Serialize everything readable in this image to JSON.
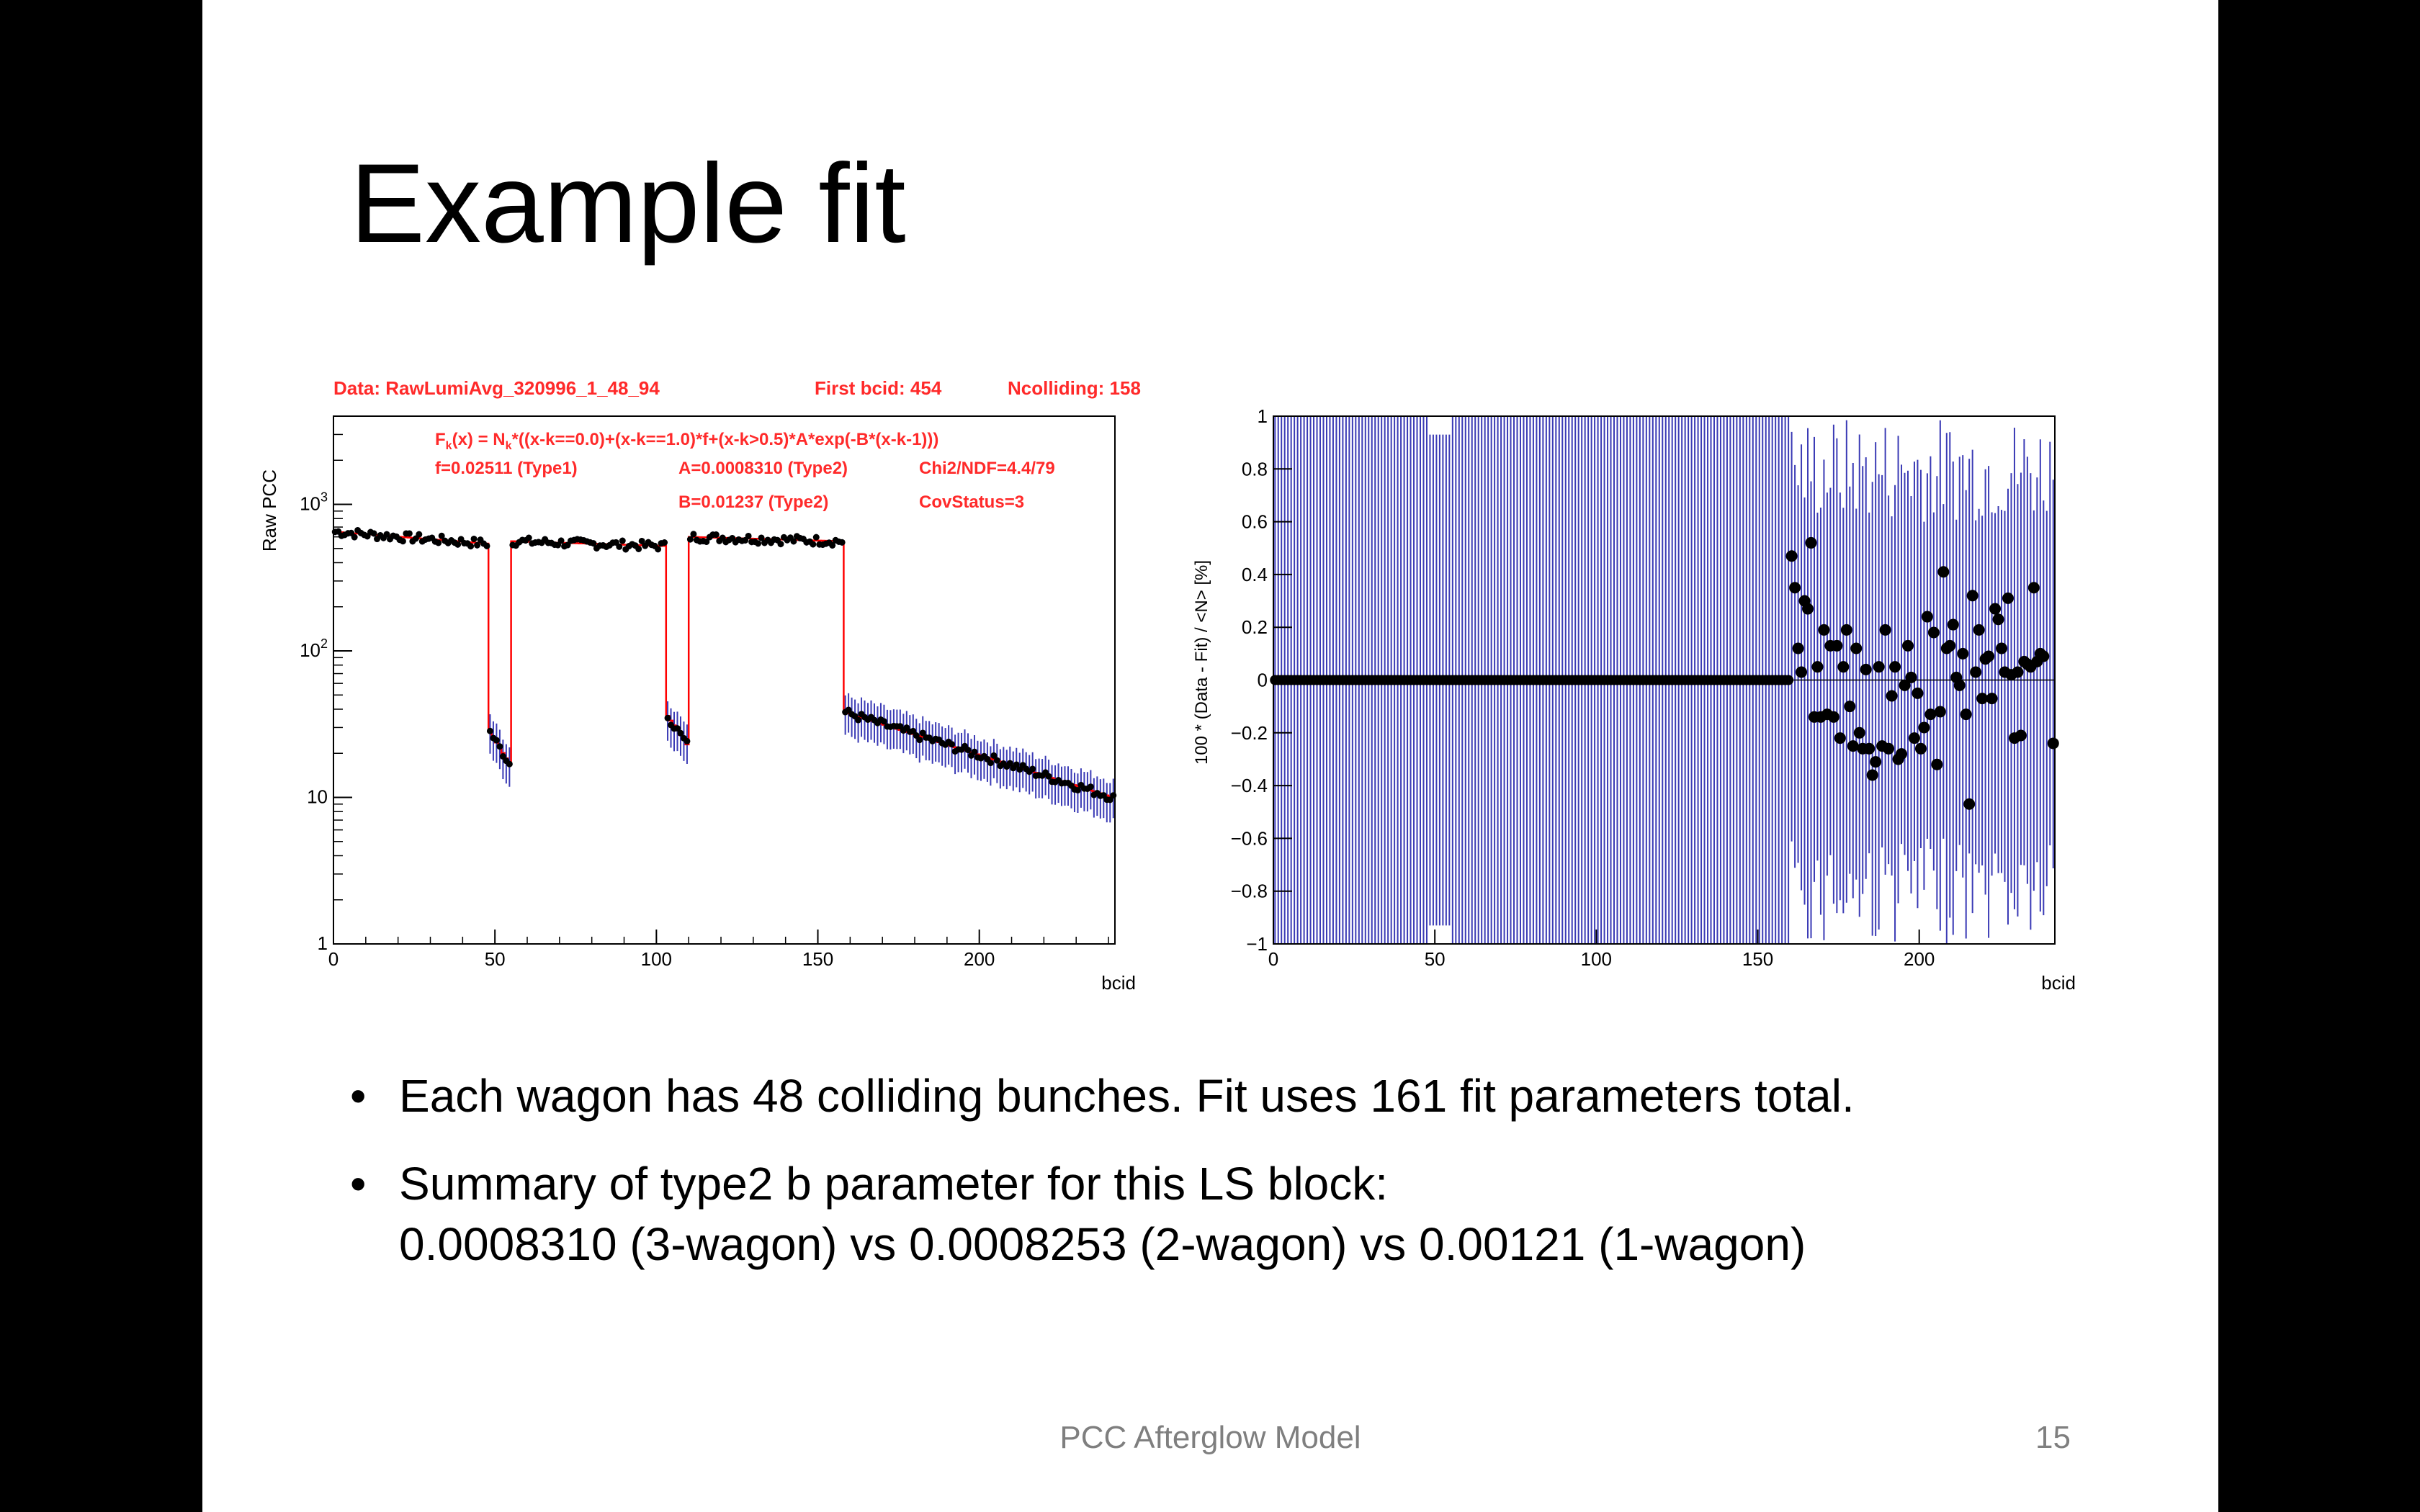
{
  "slide": {
    "title": "Example fit",
    "bullets": [
      {
        "line1": "Each wagon has 48 colliding bunches. Fit uses 161 fit parameters total."
      },
      {
        "line1": "Summary of type2 b parameter for this LS block:",
        "line2": "0.0008310 (3-wagon) vs 0.0008253 (2-wagon) vs  0.00121 (1-wagon)"
      }
    ],
    "footer": "PCC Afterglow Model",
    "page_number": "15"
  },
  "colors": {
    "data_red": "#ff2a2a",
    "fit_line": "#ff0000",
    "error_bar_blue": "#3a3ab5",
    "marker": "#000000"
  },
  "chart_data": [
    {
      "type": "scatter",
      "header": {
        "data": "Data: RawLumiAvg_320996_1_48_94",
        "first_bcid": "First bcid: 454",
        "ncolliding": "Ncolliding: 158"
      },
      "annotations": {
        "formula_pre": "F",
        "formula_sub_k": "k",
        "formula_mid": "(x) = N",
        "formula_post": "*((x-k==0.0)+(x-k==1.0)*f+(x-k>0.5)*A*exp(-B*(x-k-1)))",
        "f": "f=0.02511 (Type1)",
        "A": "A=0.0008310 (Type2)",
        "chi2": "Chi2/NDF=4.4/79",
        "B": "B=0.01237 (Type2)",
        "cov": "CovStatus=3"
      },
      "xlabel": "bcid",
      "ylabel": "Raw PCC",
      "xlim": [
        0,
        242
      ],
      "ylim": [
        1,
        4000
      ],
      "yscale": "log",
      "xticks": [
        "0",
        "50",
        "100",
        "150",
        "200"
      ],
      "yticks": [
        {
          "base": "10",
          "exp": "3"
        },
        {
          "base": "10",
          "exp": "2"
        },
        {
          "base": "10",
          "exp": ""
        },
        {
          "base": "1",
          "exp": ""
        }
      ],
      "segments": [
        {
          "x_start": 0,
          "x_end": 48,
          "level_start": 650,
          "level_end": 540
        },
        {
          "x_start": 48,
          "x_end": 55,
          "level_start": 28,
          "level_end": 17
        },
        {
          "x_start": 55,
          "x_end": 103,
          "level_start": 560,
          "level_end": 520
        },
        {
          "x_start": 103,
          "x_end": 110,
          "level_start": 36,
          "level_end": 23
        },
        {
          "x_start": 110,
          "x_end": 158,
          "level_start": 600,
          "level_end": 560
        },
        {
          "x_start": 158,
          "x_end": 242,
          "level_start": 38,
          "level_end": 10
        }
      ]
    },
    {
      "type": "scatter",
      "xlabel": "bcid",
      "ylabel": "100 * (Data - Fit) / <N>  [%]",
      "xlim": [
        0,
        242
      ],
      "ylim": [
        -1,
        1
      ],
      "xticks": [
        "0",
        "50",
        "100",
        "150",
        "200"
      ],
      "yticks": [
        "1",
        "0.8",
        "0.6",
        "0.4",
        "0.2",
        "0",
        "−0.2",
        "−0.4",
        "−0.6",
        "−0.8",
        "−1"
      ],
      "flat_region": {
        "x_start": 0,
        "x_end": 160,
        "y": 0
      },
      "scattered_points": [
        [
          160,
          0.47
        ],
        [
          161,
          0.35
        ],
        [
          162,
          0.12
        ],
        [
          163,
          0.03
        ],
        [
          164,
          0.3
        ],
        [
          165,
          0.27
        ],
        [
          166,
          0.52
        ],
        [
          167,
          -0.14
        ],
        [
          168,
          0.05
        ],
        [
          169,
          -0.14
        ],
        [
          170,
          0.19
        ],
        [
          171,
          -0.13
        ],
        [
          172,
          0.13
        ],
        [
          173,
          -0.14
        ],
        [
          174,
          0.13
        ],
        [
          175,
          -0.22
        ],
        [
          176,
          0.05
        ],
        [
          177,
          0.19
        ],
        [
          178,
          -0.1
        ],
        [
          179,
          -0.25
        ],
        [
          180,
          0.12
        ],
        [
          181,
          -0.2
        ],
        [
          182,
          -0.26
        ],
        [
          183,
          0.04
        ],
        [
          184,
          -0.26
        ],
        [
          185,
          -0.36
        ],
        [
          186,
          -0.31
        ],
        [
          187,
          0.05
        ],
        [
          188,
          -0.25
        ],
        [
          189,
          0.19
        ],
        [
          190,
          -0.26
        ],
        [
          191,
          -0.06
        ],
        [
          192,
          0.05
        ],
        [
          193,
          -0.3
        ],
        [
          194,
          -0.28
        ],
        [
          195,
          -0.02
        ],
        [
          196,
          0.13
        ],
        [
          197,
          0.01
        ],
        [
          198,
          -0.22
        ],
        [
          199,
          -0.05
        ],
        [
          200,
          -0.26
        ],
        [
          201,
          -0.18
        ],
        [
          202,
          0.24
        ],
        [
          203,
          -0.13
        ],
        [
          204,
          0.18
        ],
        [
          205,
          -0.32
        ],
        [
          206,
          -0.12
        ],
        [
          207,
          0.41
        ],
        [
          208,
          0.12
        ],
        [
          209,
          0.13
        ],
        [
          210,
          0.21
        ],
        [
          211,
          0.01
        ],
        [
          212,
          -0.02
        ],
        [
          213,
          0.1
        ],
        [
          214,
          -0.13
        ],
        [
          215,
          -0.47
        ],
        [
          216,
          0.32
        ],
        [
          217,
          0.03
        ],
        [
          218,
          0.19
        ],
        [
          219,
          -0.07
        ],
        [
          220,
          0.08
        ],
        [
          221,
          0.09
        ],
        [
          222,
          -0.07
        ],
        [
          223,
          0.27
        ],
        [
          224,
          0.23
        ],
        [
          225,
          0.12
        ],
        [
          226,
          0.03
        ],
        [
          227,
          0.31
        ],
        [
          228,
          0.02
        ],
        [
          229,
          -0.22
        ],
        [
          230,
          0.03
        ],
        [
          231,
          -0.21
        ],
        [
          232,
          0.07
        ],
        [
          233,
          0.06
        ],
        [
          234,
          0.05
        ],
        [
          235,
          0.35
        ],
        [
          236,
          0.07
        ],
        [
          237,
          0.1
        ],
        [
          238,
          0.09
        ],
        [
          241,
          -0.24
        ]
      ]
    }
  ]
}
